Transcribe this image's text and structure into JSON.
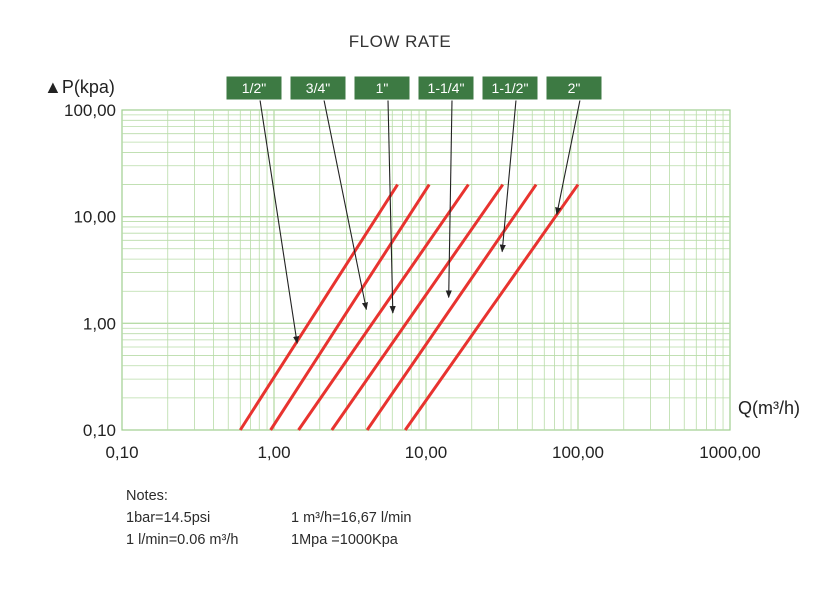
{
  "chart_data": {
    "type": "line",
    "title": "FLOW RATE",
    "ylabel": "▲P(kpa)",
    "xlabel": "Q(m³/h)",
    "xscale": "log",
    "yscale": "log",
    "xlim": [
      0.1,
      1000
    ],
    "ylim": [
      0.1,
      100
    ],
    "grid": true,
    "x_tick_labels": [
      "0,10",
      "1,00",
      "10,00",
      "100,00",
      "1000,00"
    ],
    "y_tick_labels": [
      "0,10",
      "1,00",
      "10,00",
      "100,00"
    ],
    "series": [
      {
        "name": "1/2\"",
        "x": [
          0.6,
          6.5
        ],
        "y": [
          0.1,
          20
        ]
      },
      {
        "name": "3/4\"",
        "x": [
          0.95,
          10.5
        ],
        "y": [
          0.1,
          20
        ]
      },
      {
        "name": "1\"",
        "x": [
          1.45,
          19
        ],
        "y": [
          0.1,
          20
        ]
      },
      {
        "name": "1-1/4\"",
        "x": [
          2.4,
          32
        ],
        "y": [
          0.1,
          20
        ]
      },
      {
        "name": "1-1/2\"",
        "x": [
          4.1,
          53
        ],
        "y": [
          0.1,
          20
        ]
      },
      {
        "name": "2\"",
        "x": [
          7.3,
          100
        ],
        "y": [
          0.1,
          20
        ]
      }
    ],
    "pointers": [
      {
        "series": "1/2\"",
        "x": 1.42,
        "y": 0.65
      },
      {
        "series": "3/4\"",
        "x": 4.05,
        "y": 1.35
      },
      {
        "series": "1\"",
        "x": 6.05,
        "y": 1.25
      },
      {
        "series": "1-1/4\"",
        "x": 14.1,
        "y": 1.75
      },
      {
        "series": "1-1/2\"",
        "x": 31.7,
        "y": 4.7
      },
      {
        "series": "2\"",
        "x": 72.5,
        "y": 10.5
      }
    ]
  },
  "notes": {
    "heading": "Notes:",
    "line1": "1bar=14.5psi",
    "line2": "1 l/min=0.06 m³/h",
    "line3": "1 m³/h=16,67 l/min",
    "line4": "1Mpa =1000Kpa"
  },
  "colors": {
    "series_line": "#e8332f",
    "grid": "#b8dca8",
    "label_box": "#3d7a43",
    "pointer": "#222222"
  }
}
